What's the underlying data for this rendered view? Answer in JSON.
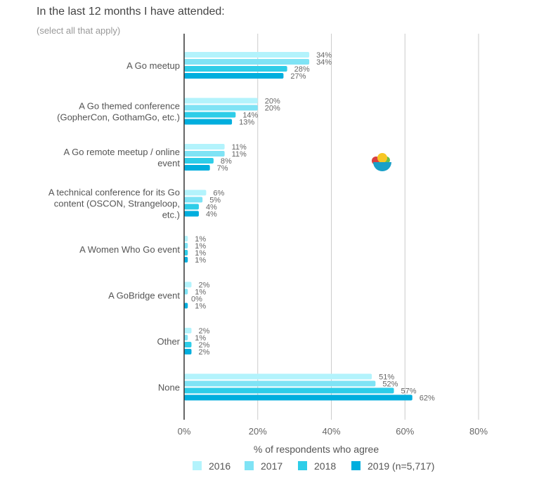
{
  "chart_data": {
    "type": "bar",
    "orientation": "horizontal",
    "title": "In the last 12 months I have attended:",
    "subtitle": "(select all that apply)",
    "xlabel": "% of respondents who agree",
    "ylabel": "",
    "xlim": [
      0,
      80
    ],
    "xticks": [
      0,
      20,
      40,
      60,
      80
    ],
    "xtick_labels": [
      "0%",
      "20%",
      "40%",
      "60%",
      "80%"
    ],
    "grid": true,
    "legend_position": "bottom",
    "categories": [
      [
        "A Go meetup"
      ],
      [
        "A Go themed conference",
        "(GopherCon, GothamGo, etc.)"
      ],
      [
        "A Go remote meetup / online",
        "event"
      ],
      [
        "A technical conference for its Go",
        "content (OSCON, Strangeloop,",
        "etc.)"
      ],
      [
        "A Women Who Go event"
      ],
      [
        "A GoBridge event"
      ],
      [
        "Other"
      ],
      [
        "None"
      ]
    ],
    "series": [
      {
        "name": "2016",
        "color": "#b3f3fc",
        "values": [
          34,
          20,
          11,
          6,
          1,
          2,
          2,
          51
        ]
      },
      {
        "name": "2017",
        "color": "#7fe3f5",
        "values": [
          34,
          20,
          11,
          5,
          1,
          1,
          1,
          52
        ]
      },
      {
        "name": "2018",
        "color": "#2ecde8",
        "values": [
          28,
          14,
          8,
          4,
          1,
          0,
          2,
          57
        ]
      },
      {
        "name": "2019 (n=5,717)",
        "color": "#00aede",
        "values": [
          27,
          13,
          7,
          4,
          1,
          1,
          2,
          62
        ]
      }
    ]
  }
}
